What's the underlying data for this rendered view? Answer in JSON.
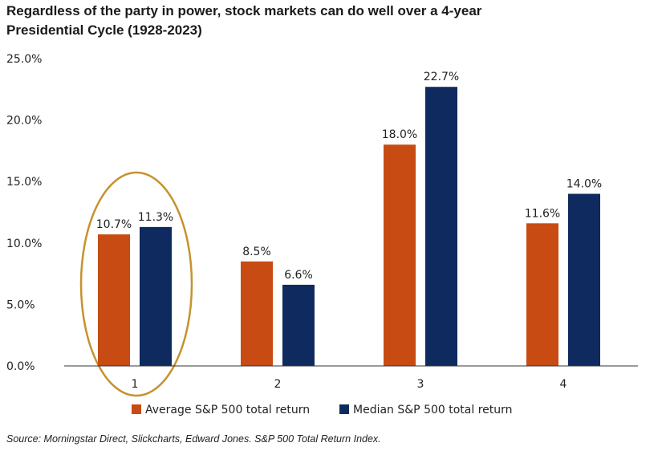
{
  "title_line1": "Regardless of the party in power, stock markets can do well over a 4-year",
  "title_line2": "Presidential  Cycle (1928-2023)",
  "source": "Source: Morningstar Direct, Slickcharts, Edward Jones. S&P 500 Total Return Index.",
  "colors": {
    "average": "#c84b14",
    "median": "#0f2a5e",
    "highlight_ellipse": "#c6922e",
    "axis": "#333333"
  },
  "chart_data": {
    "type": "bar",
    "title": "Regardless of the party in power, stock markets can do well over a 4-year Presidential  Cycle (1928-2023)",
    "categories": [
      "1",
      "2",
      "3",
      "4"
    ],
    "series": [
      {
        "name": "Average S&P 500 total return",
        "values": [
          10.7,
          8.5,
          18.0,
          11.6
        ],
        "labels": [
          "10.7%",
          "8.5%",
          "18.0%",
          "11.6%"
        ]
      },
      {
        "name": "Median S&P 500 total return",
        "values": [
          11.3,
          6.6,
          22.7,
          14.0
        ],
        "labels": [
          "11.3%",
          "6.6%",
          "22.7%",
          "14.0%"
        ]
      }
    ],
    "y_ticks": [
      0,
      5,
      10,
      15,
      20,
      25
    ],
    "y_tick_labels": [
      "0.0%",
      "5.0%",
      "10.0%",
      "15.0%",
      "20.0%",
      "25.0%"
    ],
    "ylim": [
      0,
      25
    ],
    "xlabel": "",
    "ylabel": "",
    "grid": false,
    "legend_position": "bottom",
    "highlighted_category": "1"
  }
}
